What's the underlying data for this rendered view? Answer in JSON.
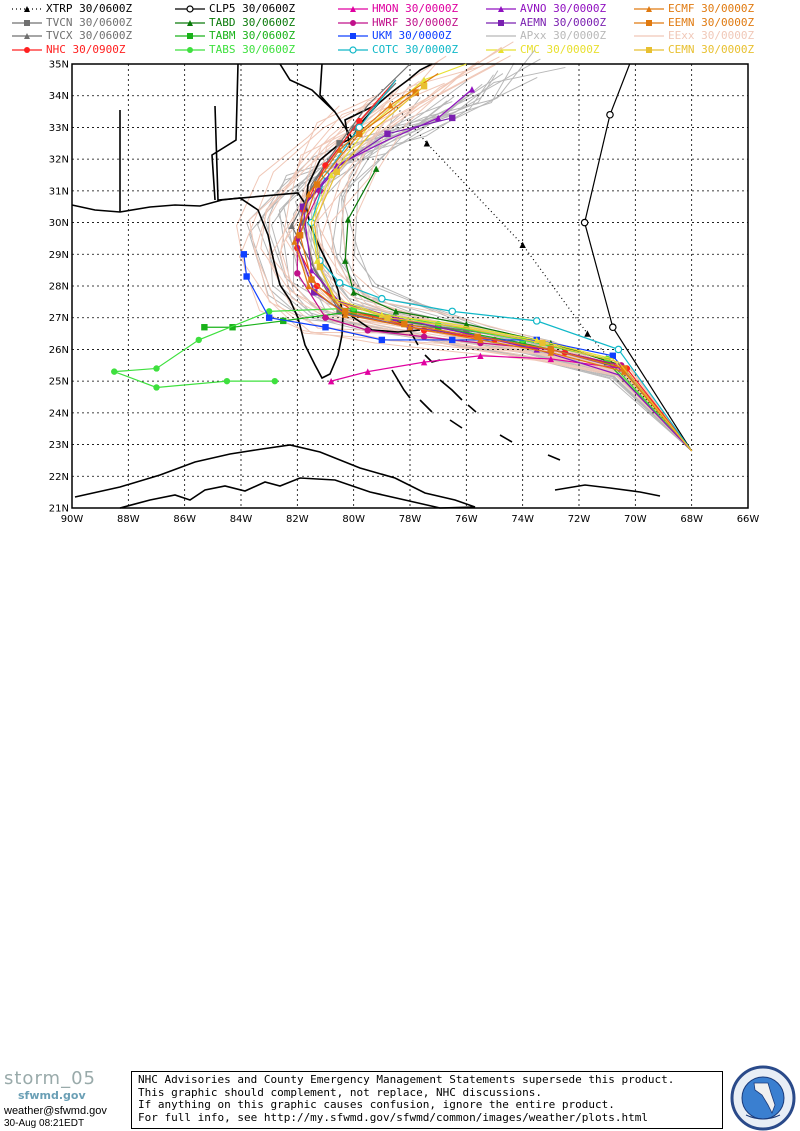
{
  "legend": [
    {
      "id": "xtrp",
      "label": "XTRP 30/0600Z",
      "color": "#000000",
      "marker": "triangle",
      "dash": "1,3"
    },
    {
      "id": "tvcn",
      "label": "TVCN 30/0600Z",
      "color": "#707070",
      "marker": "square",
      "dash": ""
    },
    {
      "id": "tvcx",
      "label": "TVCX 30/0600Z",
      "color": "#707070",
      "marker": "triangle",
      "dash": ""
    },
    {
      "id": "nhc",
      "label": "NHC 30/0900Z",
      "color": "#ff2020",
      "marker": "circle",
      "dash": ""
    },
    {
      "id": "clp5",
      "label": "CLP5 30/0600Z",
      "color": "#000000",
      "marker": "ocircle",
      "dash": ""
    },
    {
      "id": "tabd",
      "label": "TABD 30/0600Z",
      "color": "#0a7a0a",
      "marker": "triangle",
      "dash": ""
    },
    {
      "id": "tabm",
      "label": "TABM 30/0600Z",
      "color": "#1ab21a",
      "marker": "square",
      "dash": ""
    },
    {
      "id": "tabs",
      "label": "TABS 30/0600Z",
      "color": "#3ee03e",
      "marker": "circle",
      "dash": ""
    },
    {
      "id": "hmon",
      "label": "HMON 30/0000Z",
      "color": "#e000a0",
      "marker": "triangle",
      "dash": ""
    },
    {
      "id": "hwrf",
      "label": "HWRF 30/0000Z",
      "color": "#c0108a",
      "marker": "circle",
      "dash": ""
    },
    {
      "id": "ukm",
      "label": "UKM 30/0000Z",
      "color": "#1040ff",
      "marker": "square",
      "dash": ""
    },
    {
      "id": "cotc",
      "label": "COTC 30/0000Z",
      "color": "#10b8c8",
      "marker": "ocircle",
      "dash": ""
    },
    {
      "id": "avno",
      "label": "AVNO 30/0000Z",
      "color": "#9010c0",
      "marker": "triangle",
      "dash": ""
    },
    {
      "id": "aemn",
      "label": "AEMN 30/0000Z",
      "color": "#7a20b0",
      "marker": "square",
      "dash": ""
    },
    {
      "id": "apxx",
      "label": "APxx 30/0000Z",
      "color": "#b8b8b8",
      "marker": "none",
      "dash": ""
    },
    {
      "id": "cmc",
      "label": "CMC 30/0000Z",
      "color": "#e8e030",
      "marker": "triangle",
      "dash": ""
    },
    {
      "id": "ecmf",
      "label": "ECMF 30/0000Z",
      "color": "#e07a10",
      "marker": "triangle",
      "dash": ""
    },
    {
      "id": "eemn",
      "label": "EEMN 30/0000Z",
      "color": "#e07a10",
      "marker": "square",
      "dash": ""
    },
    {
      "id": "eexx",
      "label": "EExx 30/0000Z",
      "color": "#f0c8b8",
      "marker": "none",
      "dash": ""
    },
    {
      "id": "cemn",
      "label": "CEMN 30/0000Z",
      "color": "#e8c030",
      "marker": "square",
      "dash": ""
    }
  ],
  "axes": {
    "lon_min": -90,
    "lon_max": -66,
    "lat_min": 21,
    "lat_max": 35,
    "lon_labels": [
      "90W",
      "88W",
      "86W",
      "84W",
      "82W",
      "80W",
      "78W",
      "76W",
      "74W",
      "72W",
      "70W",
      "68W",
      "66W"
    ],
    "lat_labels": [
      "21N",
      "22N",
      "23N",
      "24N",
      "25N",
      "26N",
      "27N",
      "28N",
      "29N",
      "30N",
      "31N",
      "32N",
      "33N",
      "34N",
      "35N"
    ]
  },
  "tracks": {
    "xtrp": [
      [
        -68,
        22.8
      ],
      [
        -71.7,
        26.5
      ],
      [
        -74,
        29.3
      ],
      [
        -77.4,
        32.5
      ],
      [
        -79,
        34.2
      ]
    ],
    "clp5": [
      [
        -68,
        22.8
      ],
      [
        -70.8,
        26.7
      ],
      [
        -71.8,
        30
      ],
      [
        -70.9,
        33.4
      ],
      [
        -70.2,
        35
      ]
    ],
    "tvcn": [
      [
        -68,
        22.8
      ],
      [
        -70.5,
        25.5
      ],
      [
        -73,
        26.2
      ],
      [
        -76,
        26.6
      ],
      [
        -78.5,
        26.8
      ],
      [
        -80.5,
        27.2
      ],
      [
        -81.4,
        28.5
      ],
      [
        -81.8,
        30
      ],
      [
        -81.5,
        31.2
      ],
      [
        -80.5,
        32.5
      ],
      [
        -79.5,
        33.7
      ],
      [
        -78,
        35
      ]
    ],
    "tvcx": [
      [
        -68,
        22.8
      ],
      [
        -70.5,
        25.5
      ],
      [
        -73,
        26.2
      ],
      [
        -76,
        26.6
      ],
      [
        -78.5,
        26.9
      ],
      [
        -80.5,
        27.3
      ],
      [
        -81.5,
        28.7
      ],
      [
        -82.2,
        29.9
      ],
      [
        -81.3,
        31.4
      ],
      [
        -80,
        33
      ],
      [
        -78.5,
        34.4
      ]
    ],
    "nhc": [
      [
        -68,
        22.8
      ],
      [
        -70.3,
        25.4
      ],
      [
        -72.5,
        25.9
      ],
      [
        -75,
        26.3
      ],
      [
        -77.5,
        26.6
      ],
      [
        -80,
        27.2
      ],
      [
        -81.3,
        28
      ],
      [
        -82,
        29.2
      ],
      [
        -81.8,
        30.4
      ],
      [
        -81,
        31.8
      ],
      [
        -79.8,
        33.2
      ],
      [
        -78.5,
        34.5
      ]
    ],
    "tabd": [
      [
        -68,
        22.8
      ],
      [
        -70.5,
        25.5
      ],
      [
        -73,
        26.2
      ],
      [
        -76,
        26.8
      ],
      [
        -78.5,
        27.2
      ],
      [
        -80,
        27.8
      ],
      [
        -80.3,
        28.8
      ],
      [
        -80.2,
        30.1
      ],
      [
        -79.2,
        31.7
      ]
    ],
    "tabm": [
      [
        -68,
        22.8
      ],
      [
        -71,
        25.6
      ],
      [
        -74,
        26.2
      ],
      [
        -77,
        26.7
      ],
      [
        -80,
        27.2
      ],
      [
        -82.5,
        26.9
      ],
      [
        -84.3,
        26.7
      ],
      [
        -85.3,
        26.7
      ]
    ],
    "tabs": [
      [
        -68,
        22.8
      ],
      [
        -71,
        25.7
      ],
      [
        -74,
        26.3
      ],
      [
        -77,
        26.8
      ],
      [
        -80,
        27.3
      ],
      [
        -83,
        27.2
      ],
      [
        -85.5,
        26.3
      ],
      [
        -87,
        25.4
      ],
      [
        -88.5,
        25.3
      ],
      [
        -87,
        24.8
      ],
      [
        -84.5,
        25
      ],
      [
        -82.8,
        25
      ]
    ],
    "hmon": [
      [
        -68,
        22.8
      ],
      [
        -70.5,
        25.4
      ],
      [
        -73,
        25.7
      ],
      [
        -75.5,
        25.8
      ],
      [
        -77.5,
        25.6
      ],
      [
        -79.5,
        25.3
      ],
      [
        -80.8,
        25
      ]
    ],
    "hwrf": [
      [
        -68,
        22.8
      ],
      [
        -70.5,
        25.5
      ],
      [
        -73,
        26
      ],
      [
        -75.5,
        26.2
      ],
      [
        -77.5,
        26.4
      ],
      [
        -79.5,
        26.6
      ],
      [
        -81,
        27
      ],
      [
        -82,
        28.4
      ],
      [
        -82,
        29.5
      ],
      [
        -81.2,
        31
      ]
    ],
    "ukm": [
      [
        -68,
        22.8
      ],
      [
        -70.8,
        25.8
      ],
      [
        -73.5,
        26.3
      ],
      [
        -76.5,
        26.3
      ],
      [
        -79,
        26.3
      ],
      [
        -81,
        26.7
      ],
      [
        -83,
        27
      ],
      [
        -83.8,
        28.3
      ],
      [
        -83.9,
        29
      ]
    ],
    "cotc": [
      [
        -68,
        22.8
      ],
      [
        -70.6,
        26
      ],
      [
        -73.5,
        26.9
      ],
      [
        -76.5,
        27.2
      ],
      [
        -79,
        27.6
      ],
      [
        -80.5,
        28.1
      ],
      [
        -81.2,
        28.8
      ],
      [
        -81.5,
        30
      ],
      [
        -81,
        31.5
      ],
      [
        -79.8,
        33
      ],
      [
        -78.5,
        34.5
      ]
    ],
    "avno": [
      [
        -68,
        22.8
      ],
      [
        -70.6,
        25.2
      ],
      [
        -73.5,
        26
      ],
      [
        -76,
        26.5
      ],
      [
        -78.5,
        27
      ],
      [
        -80.5,
        27.5
      ],
      [
        -81.5,
        28.5
      ],
      [
        -81.8,
        30.5
      ],
      [
        -80.6,
        31.8
      ],
      [
        -78.8,
        32.6
      ],
      [
        -77,
        33.3
      ],
      [
        -75.8,
        34.2
      ]
    ],
    "aemn": [
      [
        -68,
        22.8
      ],
      [
        -70.5,
        25.4
      ],
      [
        -73,
        26
      ],
      [
        -75.5,
        26.4
      ],
      [
        -78,
        26.7
      ],
      [
        -80.2,
        27.1
      ],
      [
        -81.4,
        27.8
      ],
      [
        -82,
        29.3
      ],
      [
        -81.8,
        30.5
      ],
      [
        -80.5,
        31.8
      ],
      [
        -78.8,
        32.8
      ],
      [
        -76.5,
        33.3
      ]
    ],
    "cmc": [
      [
        -68,
        22.8
      ],
      [
        -70.8,
        25.7
      ],
      [
        -73.5,
        26.3
      ],
      [
        -76.5,
        26.8
      ],
      [
        -79,
        27.1
      ],
      [
        -80.7,
        27.6
      ],
      [
        -81.3,
        28.8
      ],
      [
        -81.5,
        30
      ],
      [
        -80.8,
        31.5
      ],
      [
        -79.5,
        33
      ],
      [
        -77.5,
        34.5
      ],
      [
        -76,
        35
      ]
    ],
    "ecmf": [
      [
        -68,
        22.8
      ],
      [
        -70.4,
        25.3
      ],
      [
        -73,
        25.9
      ],
      [
        -75.5,
        26.3
      ],
      [
        -78,
        26.7
      ],
      [
        -80.3,
        27.1
      ],
      [
        -81.6,
        28
      ],
      [
        -82.1,
        29.4
      ],
      [
        -81.6,
        30.9
      ],
      [
        -80.5,
        32.3
      ],
      [
        -78.7,
        33.7
      ],
      [
        -77,
        34.7
      ]
    ],
    "eemn": [
      [
        -68,
        22.8
      ],
      [
        -70.4,
        25.4
      ],
      [
        -73,
        26
      ],
      [
        -75.6,
        26.4
      ],
      [
        -78.2,
        26.8
      ],
      [
        -80.3,
        27.2
      ],
      [
        -81.5,
        28.2
      ],
      [
        -81.9,
        29.6
      ],
      [
        -81.3,
        31.2
      ],
      [
        -79.8,
        32.8
      ],
      [
        -77.8,
        34.1
      ]
    ],
    "cemn": [
      [
        -68,
        22.8
      ],
      [
        -70.6,
        25.6
      ],
      [
        -73.3,
        26.2
      ],
      [
        -76.2,
        26.7
      ],
      [
        -78.8,
        27
      ],
      [
        -80.6,
        27.5
      ],
      [
        -81.2,
        28.6
      ],
      [
        -81.4,
        30
      ],
      [
        -80.6,
        31.6
      ],
      [
        -79.2,
        33
      ],
      [
        -77.5,
        34.3
      ]
    ]
  },
  "marker_steps": {
    "xtrp": [
      1,
      2,
      3
    ],
    "clp5": [
      1,
      2,
      3
    ],
    "tvcn": [
      3,
      5,
      7,
      9
    ],
    "tvcx": [
      3,
      5,
      7,
      9
    ],
    "nhc": [
      1,
      2,
      3,
      4,
      5,
      6,
      7,
      8,
      9,
      10
    ],
    "tabd": [
      1,
      2,
      3,
      4,
      5,
      6,
      7,
      8
    ],
    "tabm": [
      1,
      2,
      3,
      4,
      5,
      6,
      7
    ],
    "tabs": [
      1,
      2,
      3,
      4,
      5,
      6,
      7,
      8,
      9,
      10,
      11
    ],
    "hmon": [
      1,
      2,
      3,
      4,
      5,
      6
    ],
    "hwrf": [
      1,
      2,
      3,
      4,
      5,
      6,
      7,
      8,
      9
    ],
    "ukm": [
      1,
      2,
      3,
      4,
      5,
      6,
      7,
      8
    ],
    "cotc": [
      1,
      2,
      3,
      4,
      5,
      6,
      7,
      8,
      9
    ],
    "avno": [
      2,
      4,
      6,
      8,
      10,
      11
    ],
    "aemn": [
      2,
      4,
      6,
      8,
      10,
      11
    ],
    "cmc": [
      2,
      4,
      6,
      8,
      10
    ],
    "ecmf": [
      1,
      2,
      3,
      4,
      5,
      6,
      7,
      8,
      9,
      10
    ],
    "eemn": [
      1,
      2,
      3,
      4,
      5,
      6,
      7,
      8,
      9,
      10
    ],
    "cemn": [
      2,
      4,
      6,
      8,
      10
    ]
  },
  "footer": {
    "brand": "storm_05",
    "brand_sub": "sfwmd.gov",
    "email": "weather@sfwmd.gov",
    "stamp": "30-Aug 08:21EDT",
    "disclaimer": [
      "NHC Advisories and County Emergency Management Statements supersede this product.",
      "This graphic should complement, not replace, NHC discussions.",
      "If anything on this graphic causes confusion, ignore the entire product.",
      "For full info, see  http://my.sfwmd.gov/sfwmd/common/images/weather/plots.html"
    ],
    "seal_text": "SOUTH FLORIDA WATER MANAGEMENT DISTRICT"
  }
}
